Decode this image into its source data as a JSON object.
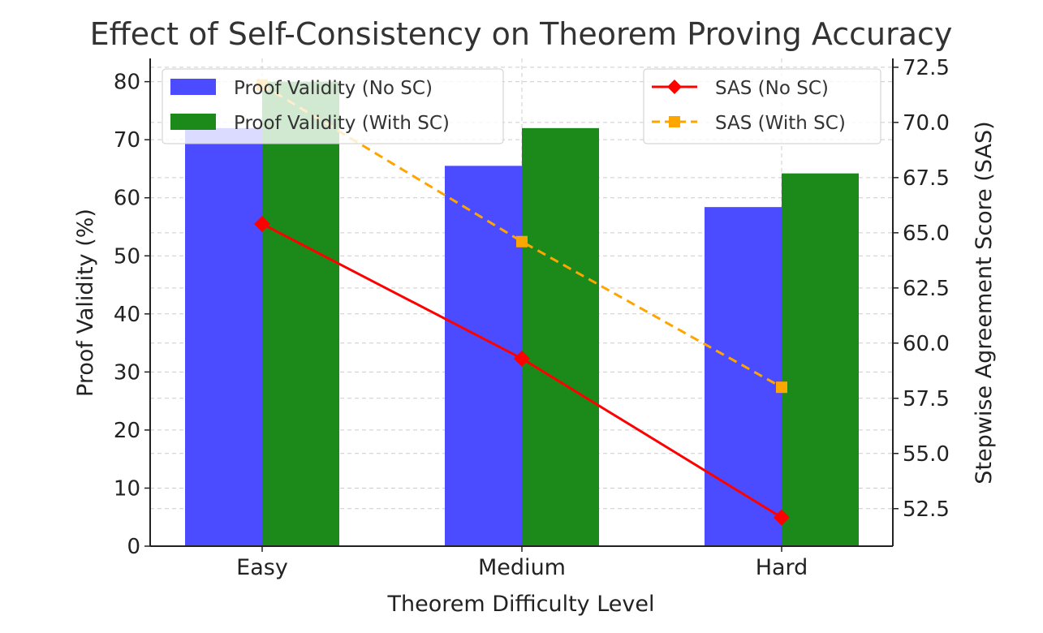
{
  "chart_data": {
    "type": "bar+line",
    "title": "Effect of Self-Consistency on Theorem Proving Accuracy",
    "xlabel": "Theorem Difficulty Level",
    "ylabel": "Proof Validity (%)",
    "y2label": "Stepwise Agreement Score (SAS)",
    "categories": [
      "Easy",
      "Medium",
      "Hard"
    ],
    "ylim": [
      0,
      84
    ],
    "y2lim": [
      50.8,
      72.9
    ],
    "yticks": [
      0,
      10,
      20,
      30,
      40,
      50,
      60,
      70,
      80
    ],
    "y2ticks": [
      "52.5",
      "55.0",
      "57.5",
      "60.0",
      "62.5",
      "65.0",
      "67.5",
      "70.0",
      "72.5"
    ],
    "bar_series": [
      {
        "name": "Proof Validity (No SC)",
        "values": [
          72,
          65.5,
          58.4
        ],
        "color": "#4b4bff"
      },
      {
        "name": "Proof Validity (With SC)",
        "values": [
          80,
          72,
          64.2
        ],
        "color": "#1b8a1b"
      }
    ],
    "line_series": [
      {
        "name": "SAS (No SC)",
        "values": [
          65.4,
          59.3,
          52.1
        ],
        "color": "#ff0000",
        "style": "solid",
        "marker": "diamond"
      },
      {
        "name": "SAS (With SC)",
        "values": [
          71.7,
          64.6,
          58.0
        ],
        "color": "#ffa500",
        "style": "dashed",
        "marker": "square"
      }
    ],
    "grid": true,
    "legend_left_position": "upper-left",
    "legend_right_position": "upper-right"
  }
}
